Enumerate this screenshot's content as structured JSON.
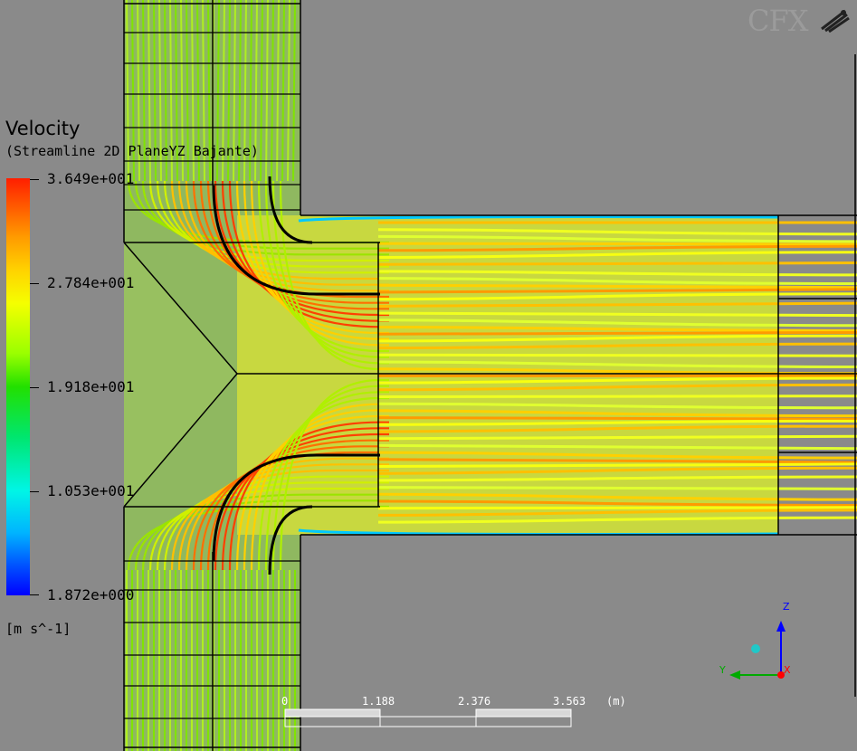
{
  "legend": {
    "title": "Velocity",
    "subtitle": "(Streamline 2D PlaneYZ Bajante)",
    "ticks": [
      "3.649e+001",
      "2.784e+001",
      "1.918e+001",
      "1.053e+001",
      "1.872e+000"
    ],
    "units": "[m s^-1]",
    "colors": [
      "#ff0000",
      "#ffff00",
      "#00ff00",
      "#00ffff",
      "#0000ff"
    ]
  },
  "scale_bar": {
    "labels": [
      "0",
      "1.188",
      "2.376",
      "3.563"
    ],
    "unit": "(m)"
  },
  "logo": {
    "text": "CFX"
  },
  "axes": {
    "z": "Z",
    "y": "Y",
    "x": "X"
  }
}
